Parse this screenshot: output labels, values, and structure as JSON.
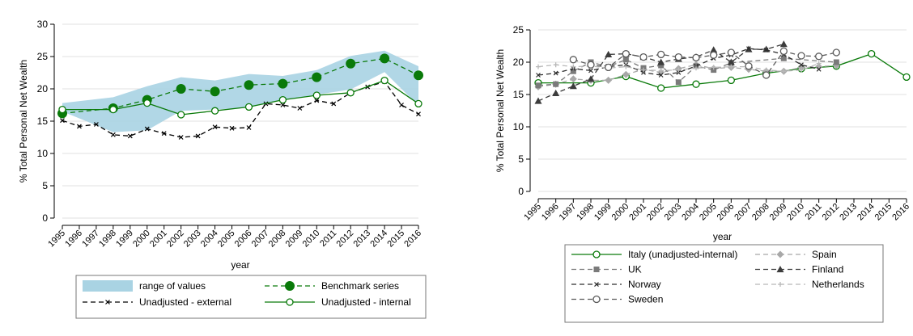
{
  "chart_data": [
    {
      "type": "line",
      "xlabel": "year",
      "ylabel": "% Total Personal Net Wealth",
      "ylim": [
        0,
        30
      ],
      "yticks": [
        0,
        5,
        10,
        15,
        20,
        25,
        30
      ],
      "grid": true,
      "legend_position": "bottom",
      "x": [
        1995,
        1996,
        1997,
        1998,
        1999,
        2000,
        2001,
        2002,
        2003,
        2004,
        2005,
        2006,
        2007,
        2008,
        2009,
        2010,
        2011,
        2012,
        2013,
        2014,
        2015,
        2016
      ],
      "band": {
        "name": "range of values",
        "color": "#a9d3e3",
        "x": [
          1995,
          1998,
          2000,
          2002,
          2004,
          2006,
          2008,
          2010,
          2012,
          2014,
          2016
        ],
        "upper": [
          17.8,
          18.7,
          20.4,
          21.8,
          21.3,
          22.3,
          22.0,
          22.9,
          25.1,
          25.9,
          23.5
        ],
        "lower": [
          16.5,
          13.3,
          13.6,
          16.6,
          16.8,
          17.1,
          18.3,
          19.1,
          19.9,
          22.6,
          17.4
        ]
      },
      "series": [
        {
          "name": "Benchmark series",
          "style": "dash",
          "marker": "filled-circle",
          "color": "#0a7a0a",
          "x": [
            1995,
            1998,
            2000,
            2002,
            2004,
            2006,
            2008,
            2010,
            2012,
            2014,
            2016
          ],
          "values": [
            16.2,
            17.0,
            18.3,
            20.0,
            19.6,
            20.6,
            20.8,
            21.8,
            23.9,
            24.7,
            22.1
          ]
        },
        {
          "name": "Unadjusted - external",
          "style": "dash",
          "marker": "x",
          "color": "#000000",
          "x": [
            1995,
            1996,
            1997,
            1998,
            1999,
            2000,
            2001,
            2002,
            2003,
            2004,
            2005,
            2006,
            2007,
            2008,
            2009,
            2010,
            2011,
            2012,
            2013,
            2014,
            2015,
            2016
          ],
          "values": [
            15.1,
            14.2,
            14.5,
            12.9,
            12.7,
            13.8,
            13.1,
            12.5,
            12.7,
            14.1,
            13.9,
            14.0,
            17.7,
            17.5,
            17.0,
            18.2,
            17.7,
            19.4,
            20.3,
            21.1,
            17.5,
            16.1
          ]
        },
        {
          "name": "Unadjusted - internal",
          "style": "solid",
          "marker": "hollow-circle",
          "color": "#0a7a0a",
          "x": [
            1995,
            1998,
            2000,
            2002,
            2004,
            2006,
            2008,
            2010,
            2012,
            2014,
            2016
          ],
          "values": [
            16.8,
            16.8,
            17.8,
            16.0,
            16.6,
            17.2,
            18.3,
            19.0,
            19.4,
            21.3,
            17.7
          ]
        }
      ],
      "legend": [
        {
          "label": "range of values"
        },
        {
          "label": "Benchmark series"
        },
        {
          "label": "Unadjusted - external"
        },
        {
          "label": "Unadjusted - internal"
        }
      ]
    },
    {
      "type": "line",
      "xlabel": "year",
      "ylabel": "% Total Personal Net Wealth",
      "ylim": [
        0,
        25
      ],
      "yticks": [
        0,
        5,
        10,
        15,
        20,
        25
      ],
      "grid": true,
      "legend_position": "bottom",
      "x": [
        1995,
        1996,
        1997,
        1998,
        1999,
        2000,
        2001,
        2002,
        2003,
        2004,
        2005,
        2006,
        2007,
        2008,
        2009,
        2010,
        2011,
        2012,
        2013,
        2014,
        2015,
        2016
      ],
      "series": [
        {
          "name": "Italy (unadjusted-internal)",
          "style": "solid",
          "marker": "hollow-circle",
          "color": "#0a7a0a",
          "x": [
            1995,
            1998,
            2000,
            2002,
            2004,
            2006,
            2008,
            2010,
            2012,
            2014,
            2016
          ],
          "values": [
            16.8,
            16.8,
            17.8,
            16.0,
            16.6,
            17.2,
            18.3,
            19.0,
            19.4,
            21.3,
            17.7
          ]
        },
        {
          "name": "Spain",
          "style": "dash",
          "marker": "diamond",
          "color": "#a8a8a8",
          "x": [
            1995,
            1996,
            1997,
            1998,
            1999,
            2000,
            2001,
            2002,
            2003,
            2004,
            2005,
            2006,
            2007,
            2008,
            2009,
            2010,
            2011,
            2012
          ],
          "values": [
            16.2,
            16.6,
            17.4,
            17.2,
            17.2,
            18.1,
            18.9,
            18.4,
            19.0,
            19.6,
            19.0,
            19.2,
            18.9,
            18.6,
            18.6,
            19.2,
            19.3,
            19.5
          ]
        },
        {
          "name": "UK",
          "style": "dash",
          "marker": "square",
          "color": "#7a7a7a",
          "x": [
            1995,
            1996,
            1997,
            1998,
            1999,
            2000,
            2001,
            2002,
            2003,
            2004,
            2005,
            2006,
            2009,
            2012
          ],
          "values": [
            16.4,
            16.6,
            18.6,
            20.0,
            19.3,
            20.4,
            19.1,
            19.5,
            16.9,
            19.4,
            18.8,
            19.9,
            20.6,
            20.0
          ]
        },
        {
          "name": "Finland",
          "style": "dash",
          "marker": "triangle",
          "color": "#3c3c3c",
          "x": [
            1995,
            1996,
            1997,
            1998,
            1999,
            2000,
            2001,
            2002,
            2003,
            2004,
            2005,
            2006,
            2007,
            2008,
            2009
          ],
          "values": [
            14.0,
            15.2,
            16.3,
            17.4,
            21.2,
            21.3,
            20.8,
            20.0,
            20.5,
            20.8,
            21.9,
            20.0,
            22.0,
            22.0,
            22.8
          ]
        },
        {
          "name": "Norway",
          "style": "dash",
          "marker": "x",
          "color": "#2e2e2e",
          "x": [
            1995,
            1996,
            1997,
            1998,
            1999,
            2000,
            2001,
            2002,
            2003,
            2004,
            2005,
            2006,
            2007,
            2008,
            2009,
            2010,
            2011
          ],
          "values": [
            18.0,
            18.3,
            19.0,
            18.7,
            19.3,
            19.6,
            18.4,
            18.0,
            18.4,
            19.4,
            20.6,
            21.1,
            22.1,
            21.9,
            21.2,
            19.6,
            18.9
          ]
        },
        {
          "name": "Netherlands",
          "style": "dash",
          "marker": "plus",
          "color": "#b8b8b8",
          "x": [
            1995,
            1996,
            1997,
            1998,
            1999,
            2000,
            2001,
            2002,
            2003,
            2004,
            2005,
            2006,
            2007,
            2008,
            2009,
            2010,
            2011
          ],
          "values": [
            19.3,
            19.6,
            19.3,
            19.4,
            19.1,
            19.3,
            18.8,
            18.7,
            18.8,
            19.1,
            19.2,
            19.3,
            19.3,
            18.8,
            18.6,
            18.8,
            19.8
          ]
        },
        {
          "name": "Sweden",
          "style": "dash",
          "marker": "hollow-circle",
          "color": "#5a5a5a",
          "x": [
            1997,
            1998,
            1999,
            2000,
            2001,
            2002,
            2003,
            2004,
            2005,
            2006,
            2007,
            2008,
            2009,
            2010,
            2011,
            2012
          ],
          "values": [
            20.4,
            19.6,
            19.2,
            21.3,
            20.8,
            21.2,
            20.8,
            20.7,
            21.1,
            21.5,
            19.4,
            18.0,
            21.7,
            21.0,
            20.9,
            21.5
          ]
        }
      ],
      "legend": [
        {
          "label": "Italy (unadjusted-internal)"
        },
        {
          "label": "Spain"
        },
        {
          "label": "UK"
        },
        {
          "label": "Finland"
        },
        {
          "label": "Norway"
        },
        {
          "label": "Netherlands"
        },
        {
          "label": "Sweden"
        }
      ]
    }
  ]
}
